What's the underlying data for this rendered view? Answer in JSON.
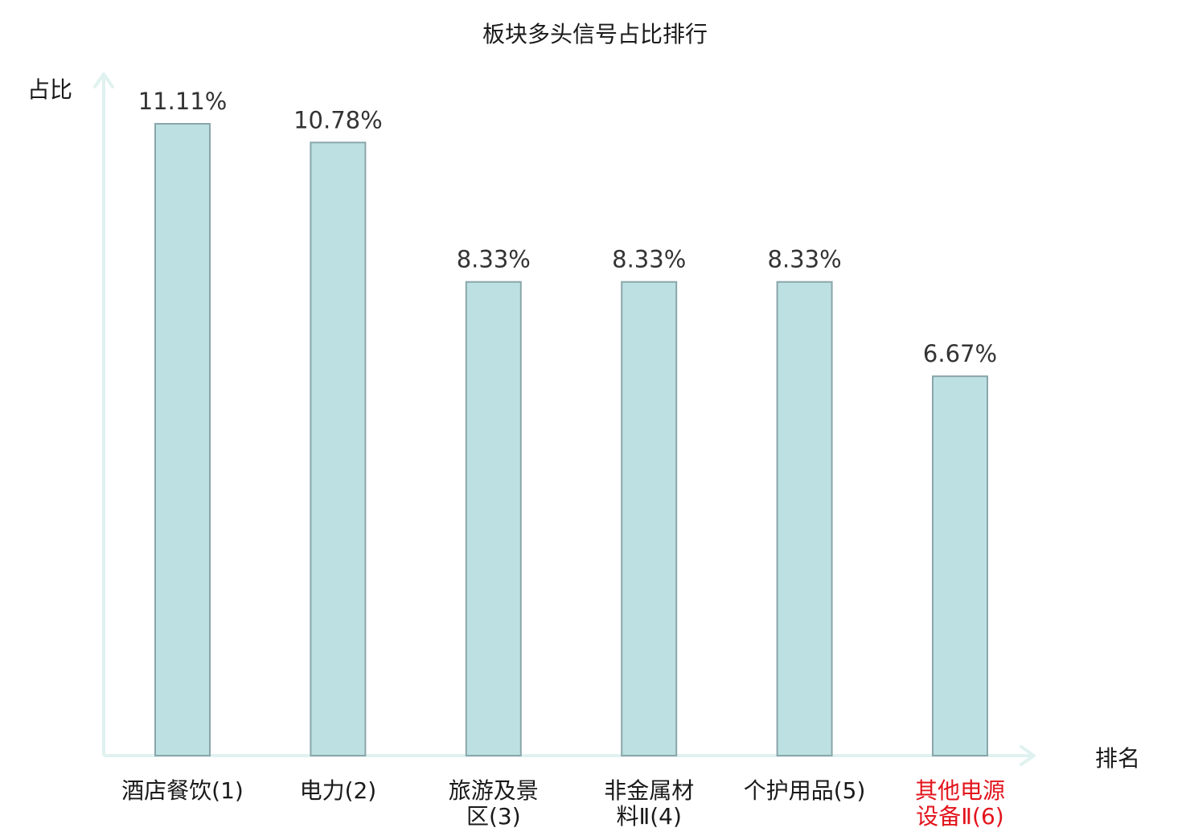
{
  "chart_data": {
    "type": "bar",
    "title": "板块多头信号占比排行",
    "ylabel": "占比",
    "xlabel": "排名",
    "ylim": [
      0,
      12
    ],
    "grid": false,
    "categories": [
      [
        "酒店餐饮(1)"
      ],
      [
        "电力(2)"
      ],
      [
        "旅游及景",
        "区(3)"
      ],
      [
        "非金属材",
        "料Ⅱ(4)"
      ],
      [
        "个护用品(5)"
      ],
      [
        "其他电源",
        "设备Ⅱ(6)"
      ]
    ],
    "values": [
      11.11,
      10.78,
      8.33,
      8.33,
      8.33,
      6.67
    ],
    "value_labels": [
      "11.11%",
      "10.78%",
      "8.33%",
      "8.33%",
      "8.33%",
      "6.67%"
    ],
    "highlight_index": 5
  },
  "colors": {
    "bar_fill": "#bde0e2",
    "bar_stroke": "#8aa6aa",
    "axis": "#e0f2ef",
    "text": "#1a1a1a",
    "value_text": "#333333",
    "highlight_text": "#e3141c"
  }
}
